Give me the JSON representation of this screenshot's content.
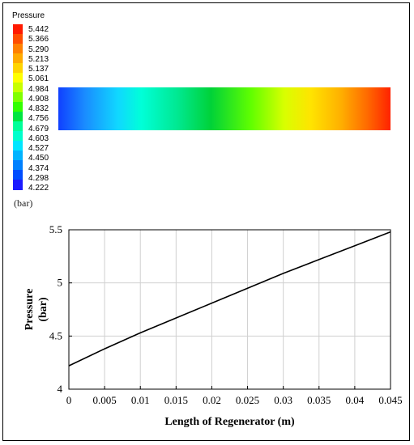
{
  "contour": {
    "title": "Pressure",
    "unit": "(bar)",
    "scale_labels": [
      "5.442",
      "5.366",
      "5.290",
      "5.213",
      "5.137",
      "5.061",
      "4.984",
      "4.908",
      "4.832",
      "4.756",
      "4.679",
      "4.603",
      "4.527",
      "4.450",
      "4.374",
      "4.298",
      "4.222"
    ],
    "scale_colors": [
      "#ff1a00",
      "#ff4d00",
      "#ff8000",
      "#ffaa00",
      "#ffd400",
      "#ffff00",
      "#c8ff00",
      "#80ff00",
      "#33ff00",
      "#00e640",
      "#00ff99",
      "#00ffcc",
      "#00e6ff",
      "#00b3ff",
      "#0080ff",
      "#004dff",
      "#1a1aff"
    ]
  },
  "chart_data": {
    "type": "line",
    "xlabel": "Length of Regenerator (m)",
    "ylabel": "Pressure\n(bar)",
    "xlim": [
      0,
      0.045
    ],
    "ylim": [
      4,
      5.5
    ],
    "x_ticks": [
      "0",
      "0.005",
      "0.01",
      "0.015",
      "0.02",
      "0.025",
      "0.03",
      "0.035",
      "0.04",
      "0.045"
    ],
    "y_ticks": [
      "4",
      "4.5",
      "5",
      "5.5"
    ],
    "grid": true,
    "line_color": "#000000",
    "x": [
      0,
      0.005,
      0.01,
      0.015,
      0.02,
      0.025,
      0.03,
      0.035,
      0.04,
      0.045
    ],
    "y": [
      4.22,
      4.38,
      4.53,
      4.67,
      4.81,
      4.95,
      5.09,
      5.22,
      5.35,
      5.48
    ]
  }
}
